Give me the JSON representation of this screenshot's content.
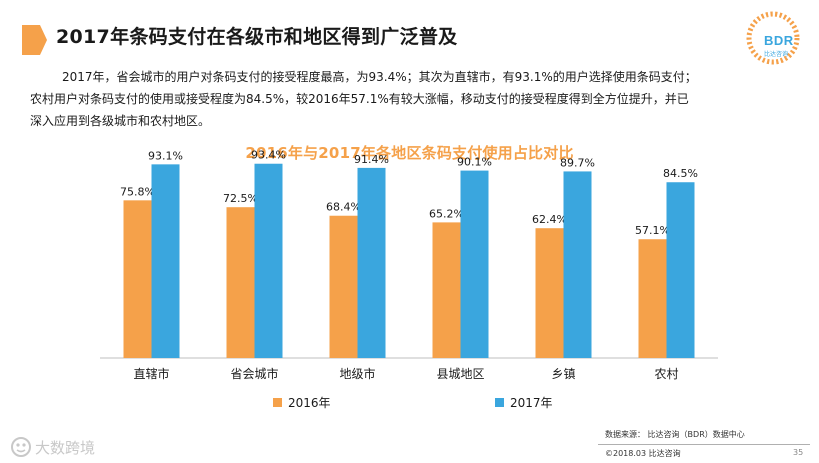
{
  "header": {
    "title": "2017年条码支付在各级市和地区得到广泛普及",
    "logo_text": "BDR",
    "logo_subtext": "比达咨询"
  },
  "summary": {
    "line1": "2017年，省会城市的用户对条码支付的接受程度最高，为93.4%；其次为直辖市，有93.1%的用户选择使用条码支付；",
    "line2": "农村用户对条码支付的使用或接受程度为84.5%，较2016年57.1%有较大涨幅，移动支付的接受程度得到全方位提升，并已",
    "line3": "深入应用到各级城市和农村地区。"
  },
  "chart_data": {
    "type": "bar",
    "title": "2016年与2017年各地区条码支付使用占比对比",
    "categories": [
      "直辖市",
      "省会城市",
      "地级市",
      "县城地区",
      "乡镇",
      "农村"
    ],
    "series": [
      {
        "name": "2016年",
        "values": [
          75.8,
          72.5,
          68.4,
          65.2,
          62.4,
          57.1
        ],
        "labels": [
          "75.8%",
          "72.5%",
          "68.4%",
          "65.2%",
          "62.4%",
          "57.1%"
        ],
        "color": "#f5a14a"
      },
      {
        "name": "2017年",
        "values": [
          93.1,
          93.4,
          91.4,
          90.1,
          89.7,
          84.5
        ],
        "labels": [
          "93.1%",
          "93.4%",
          "91.4%",
          "90.1%",
          "89.7%",
          "84.5%"
        ],
        "color": "#3aa6de"
      }
    ],
    "ylim": [
      0,
      100
    ],
    "xlabel": "",
    "ylabel": "",
    "legend": "bottom"
  },
  "footer": {
    "source": "数据来源：  比达咨询（BDR）数据中心",
    "copyright": "©2018.03 比达咨询",
    "page_number": "35",
    "watermark": "大数跨境"
  }
}
